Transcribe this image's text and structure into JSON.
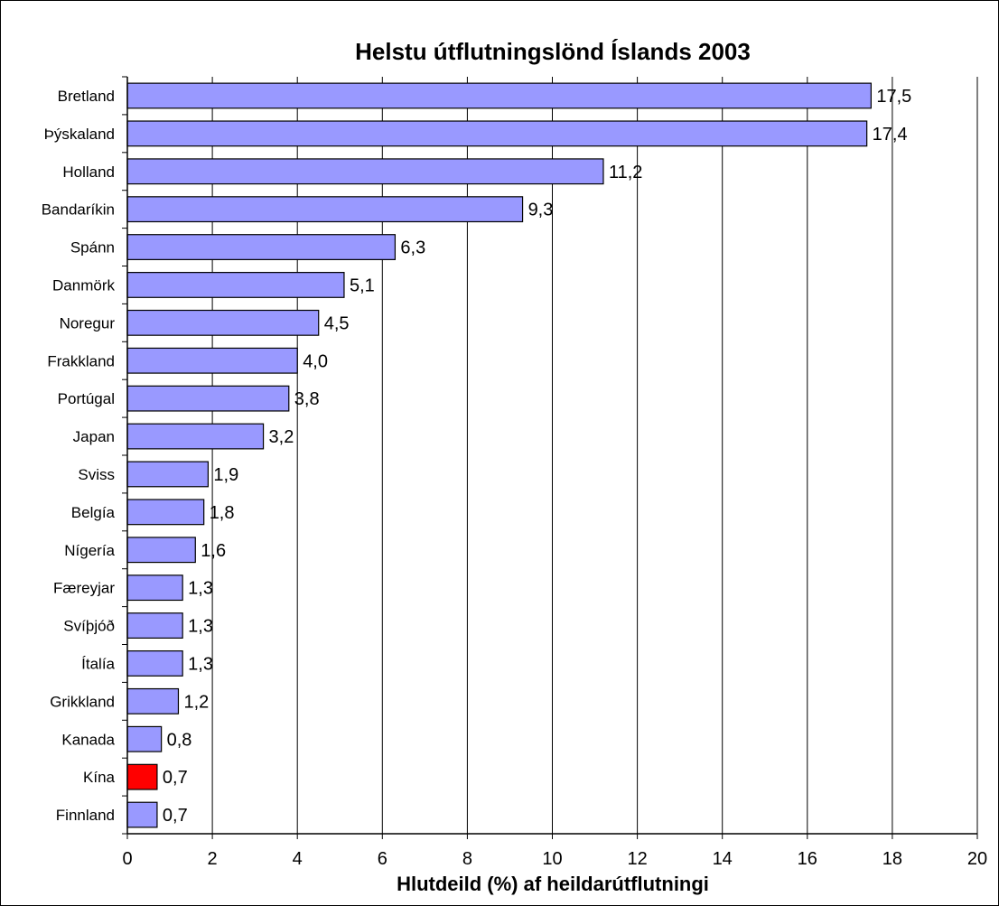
{
  "chart_data": {
    "type": "bar",
    "orientation": "horizontal",
    "title": "Helstu útflutningslönd Íslands 2003",
    "xlabel": "Hlutdeild (%) af heildarútflutningi",
    "ylabel": "",
    "xlim": [
      0,
      20
    ],
    "xticks": [
      "0",
      "2",
      "4",
      "6",
      "8",
      "10",
      "12",
      "14",
      "16",
      "18",
      "20"
    ],
    "grid": "vertical",
    "legend": "none",
    "bar_color": "#9999ff",
    "highlight_color": "#ff0000",
    "highlight_category": "Kína",
    "categories": [
      "Bretland",
      "Þýskaland",
      "Holland",
      "Bandaríkin",
      "Spánn",
      "Danmörk",
      "Noregur",
      "Frakkland",
      "Portúgal",
      "Japan",
      "Sviss",
      "Belgía",
      "Nígería",
      "Færeyjar",
      "Svíþjóð",
      "Ítalía",
      "Grikkland",
      "Kanada",
      "Kína",
      "Finnland"
    ],
    "values": [
      17.5,
      17.4,
      11.2,
      9.3,
      6.3,
      5.1,
      4.5,
      4.0,
      3.8,
      3.2,
      1.9,
      1.8,
      1.6,
      1.3,
      1.3,
      1.3,
      1.2,
      0.8,
      0.7,
      0.7
    ],
    "data_labels": [
      "17,5",
      "17,4",
      "11,2",
      "9,3",
      "6,3",
      "5,1",
      "4,5",
      "4,0",
      "3,8",
      "3,2",
      "1,9",
      "1,8",
      "1,6",
      "1,3",
      "1,3",
      "1,3",
      "1,2",
      "0,8",
      "0,7",
      "0,7"
    ]
  }
}
